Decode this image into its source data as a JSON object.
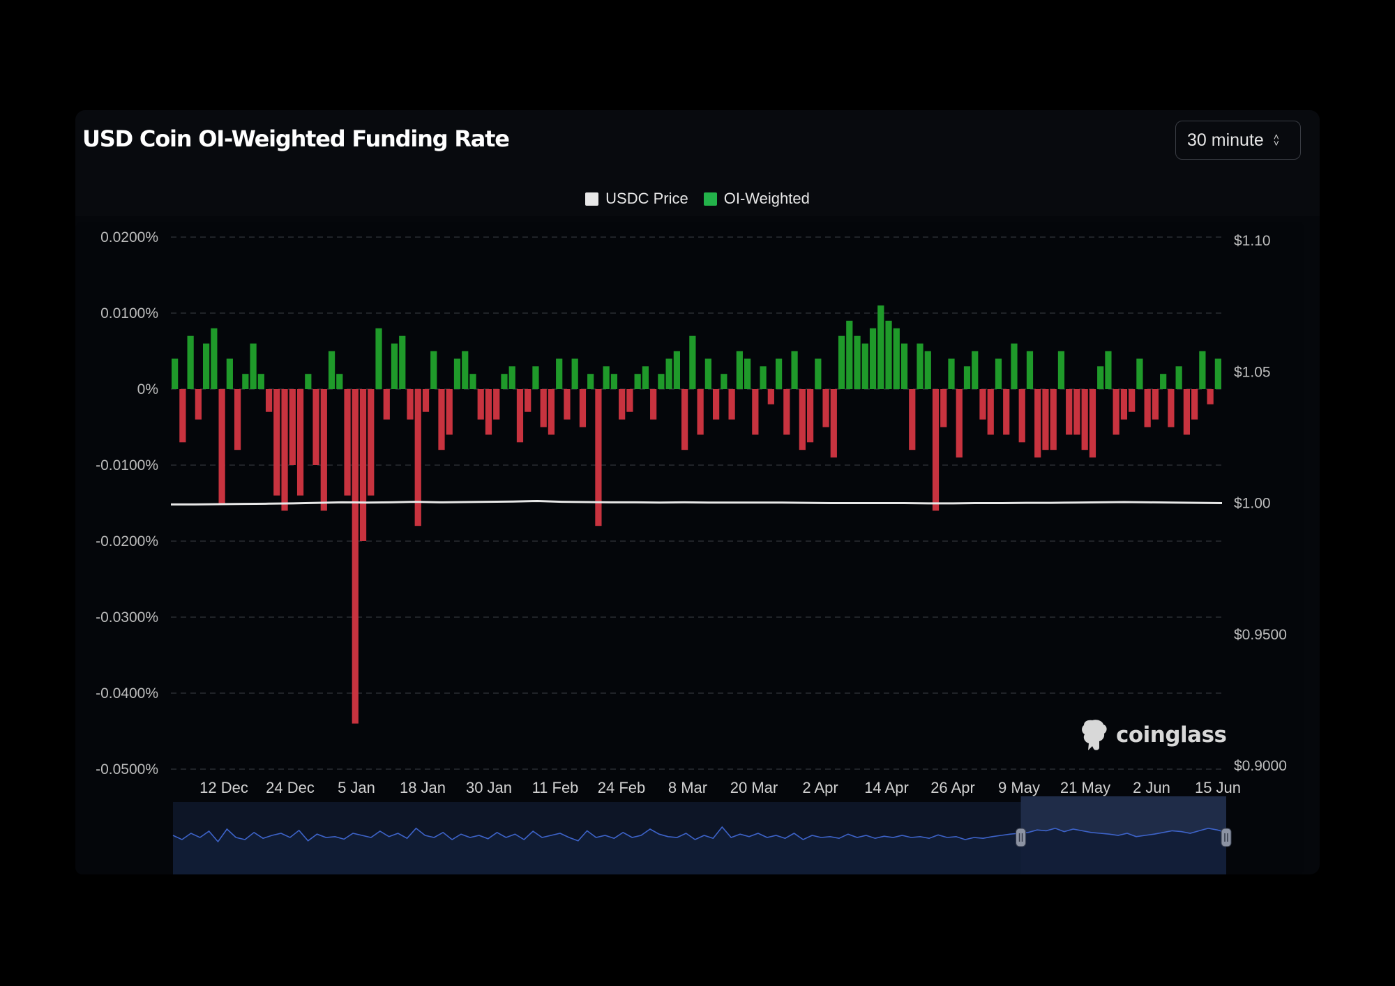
{
  "header": {
    "title": "USD Coin OI-Weighted Funding Rate",
    "interval_label": "30 minute"
  },
  "legend": {
    "price_label": "USDC Price",
    "funding_label": "OI-Weighted"
  },
  "brand": {
    "name": "coinglass",
    "icon": "coinglass-logo-icon"
  },
  "colors": {
    "positive": "#1f9a2a",
    "negative": "#c8333f",
    "price_line": "#e8e8e8",
    "price_swatch": "#e8e8e8",
    "funding_swatch": "#23b24a",
    "navigator_line": "#3d63c9",
    "navigator_fill": "#0d1526",
    "navigator_selected": "#1f2c48"
  },
  "chart_data": {
    "type": "bar",
    "x_tick_labels": [
      "12 Dec",
      "24 Dec",
      "5 Jan",
      "18 Jan",
      "30 Jan",
      "11 Feb",
      "24 Feb",
      "8 Mar",
      "20 Mar",
      "2 Apr",
      "14 Apr",
      "26 Apr",
      "9 May",
      "21 May",
      "2 Jun",
      "15 Jun"
    ],
    "y_left": {
      "ticks": [
        "0.0200%",
        "0.0100%",
        "0%",
        "-0.0100%",
        "-0.0200%",
        "-0.0300%",
        "-0.0400%",
        "-0.0500%"
      ],
      "range": [
        -0.05,
        0.02
      ],
      "unit": "%"
    },
    "y_right": {
      "ticks": [
        "$1.10",
        "$1.05",
        "$1.00",
        "$0.9500",
        "$0.9000"
      ],
      "range": [
        0.9,
        1.1
      ]
    },
    "grid": true,
    "legend_position": "top-center",
    "series": [
      {
        "name": "OI-Weighted",
        "axis": "left",
        "kind": "bar",
        "values": [
          0.004,
          -0.007,
          0.007,
          -0.004,
          0.006,
          0.008,
          -0.015,
          0.004,
          -0.008,
          0.002,
          0.006,
          0.002,
          -0.003,
          -0.014,
          -0.016,
          -0.01,
          -0.014,
          0.002,
          -0.01,
          -0.016,
          0.005,
          0.002,
          -0.014,
          -0.044,
          -0.02,
          -0.014,
          0.008,
          -0.004,
          0.006,
          0.007,
          -0.004,
          -0.018,
          -0.003,
          0.005,
          -0.008,
          -0.006,
          0.004,
          0.005,
          0.002,
          -0.004,
          -0.006,
          -0.004,
          0.002,
          0.003,
          -0.007,
          -0.003,
          0.003,
          -0.005,
          -0.006,
          0.004,
          -0.004,
          0.004,
          -0.005,
          0.002,
          -0.018,
          0.003,
          0.002,
          -0.004,
          -0.003,
          0.002,
          0.003,
          -0.004,
          0.002,
          0.004,
          0.005,
          -0.008,
          0.007,
          -0.006,
          0.004,
          -0.004,
          0.002,
          -0.004,
          0.005,
          0.004,
          -0.006,
          0.003,
          -0.002,
          0.004,
          -0.006,
          0.005,
          -0.008,
          -0.007,
          0.004,
          -0.005,
          -0.009,
          0.007,
          0.009,
          0.007,
          0.006,
          0.008,
          0.011,
          0.009,
          0.008,
          0.006,
          -0.008,
          0.006,
          0.005,
          -0.016,
          -0.005,
          0.004,
          -0.009,
          0.003,
          0.005,
          -0.004,
          -0.006,
          0.004,
          -0.006,
          0.006,
          -0.007,
          0.005,
          -0.009,
          -0.008,
          -0.008,
          0.005,
          -0.006,
          -0.006,
          -0.008,
          -0.009,
          0.003,
          0.005,
          -0.006,
          -0.004,
          -0.003,
          0.004,
          -0.005,
          -0.004,
          0.002,
          -0.005,
          0.003,
          -0.006,
          -0.004,
          0.005,
          -0.002,
          0.004
        ],
        "color": "positive-green / negative-red"
      },
      {
        "name": "USDC Price",
        "axis": "right",
        "kind": "line",
        "values": [
          0.9995,
          0.9995,
          0.9996,
          0.9997,
          0.9998,
          0.9999,
          1.0001,
          1.0003,
          1.0002,
          1.0003,
          1.0005,
          1.0003,
          1.0004,
          1.0005,
          1.0006,
          1.0008,
          1.0005,
          1.0004,
          1.0003,
          1.0003,
          1.0002,
          1.0003,
          1.0002,
          1.0002,
          1.0002,
          1.0002,
          1.0001,
          1.0,
          1.0,
          1.0,
          1.0,
          0.9999,
          0.9999,
          1.0,
          1.0,
          1.0001,
          1.0001,
          1.0002,
          1.0003,
          1.0004,
          1.0003,
          1.0002,
          1.0001,
          1.0
        ]
      }
    ]
  },
  "navigator": {
    "values": [
      0.55,
      0.45,
      0.6,
      0.5,
      0.65,
      0.4,
      0.7,
      0.5,
      0.45,
      0.62,
      0.48,
      0.55,
      0.6,
      0.5,
      0.67,
      0.42,
      0.58,
      0.5,
      0.52,
      0.46,
      0.6,
      0.55,
      0.5,
      0.65,
      0.52,
      0.6,
      0.48,
      0.72,
      0.55,
      0.5,
      0.62,
      0.45,
      0.58,
      0.5,
      0.55,
      0.47,
      0.62,
      0.5,
      0.58,
      0.45,
      0.65,
      0.5,
      0.55,
      0.6,
      0.5,
      0.42,
      0.66,
      0.5,
      0.55,
      0.48,
      0.62,
      0.5,
      0.55,
      0.7,
      0.58,
      0.52,
      0.5,
      0.6,
      0.45,
      0.55,
      0.48,
      0.75,
      0.5,
      0.58,
      0.52,
      0.6,
      0.5,
      0.55,
      0.48,
      0.6,
      0.45,
      0.55,
      0.5,
      0.52,
      0.48,
      0.58,
      0.5,
      0.55,
      0.48,
      0.53,
      0.5,
      0.55,
      0.5,
      0.52,
      0.48,
      0.56,
      0.5,
      0.52,
      0.45,
      0.5,
      0.48,
      0.52,
      0.55,
      0.58,
      0.6,
      0.62,
      0.68,
      0.66,
      0.72,
      0.64,
      0.7,
      0.66,
      0.62,
      0.6,
      0.58,
      0.55,
      0.6,
      0.52,
      0.55,
      0.58,
      0.62,
      0.66,
      0.64,
      0.6,
      0.66,
      0.72,
      0.68,
      0.62
    ],
    "selection": [
      0.805,
      1.0
    ]
  }
}
